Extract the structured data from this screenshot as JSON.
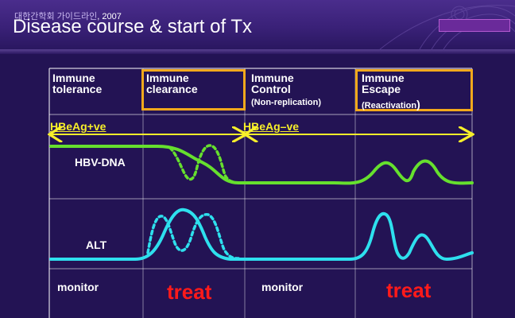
{
  "header": {
    "subtitle_org": "대한간학회",
    "subtitle_guide": "가이드라인",
    "subtitle_year": ", 2007",
    "title": "Disease course & start of Tx"
  },
  "phases": [
    {
      "line1": "Immune",
      "line2": "tolerance",
      "sub": "",
      "highlighted": false
    },
    {
      "line1": "Immune",
      "line2": "clearance",
      "sub": "",
      "highlighted": true
    },
    {
      "line1": "Immune",
      "line2": "Control",
      "sub": "(Non-replication)",
      "highlighted": false
    },
    {
      "line1": "Immune",
      "line2": "Escape",
      "sub": "(Reactivation",
      "sub_close": ")",
      "highlighted": true
    }
  ],
  "hbeag": {
    "positive": "HBeAg+ve",
    "negative": "HBeAg–ve"
  },
  "parameters": {
    "hbv_dna": "HBV-DNA",
    "alt": "ALT"
  },
  "actions": [
    "monitor",
    "treat",
    "monitor",
    "treat"
  ],
  "colors": {
    "background": "#231354",
    "hbv_dna_line": "#66e02e",
    "alt_line": "#2ee0ee",
    "highlight_box": "#f3a91c",
    "hbeag_text": "#f7ef2a",
    "treat_text": "#ff1a1a"
  }
}
